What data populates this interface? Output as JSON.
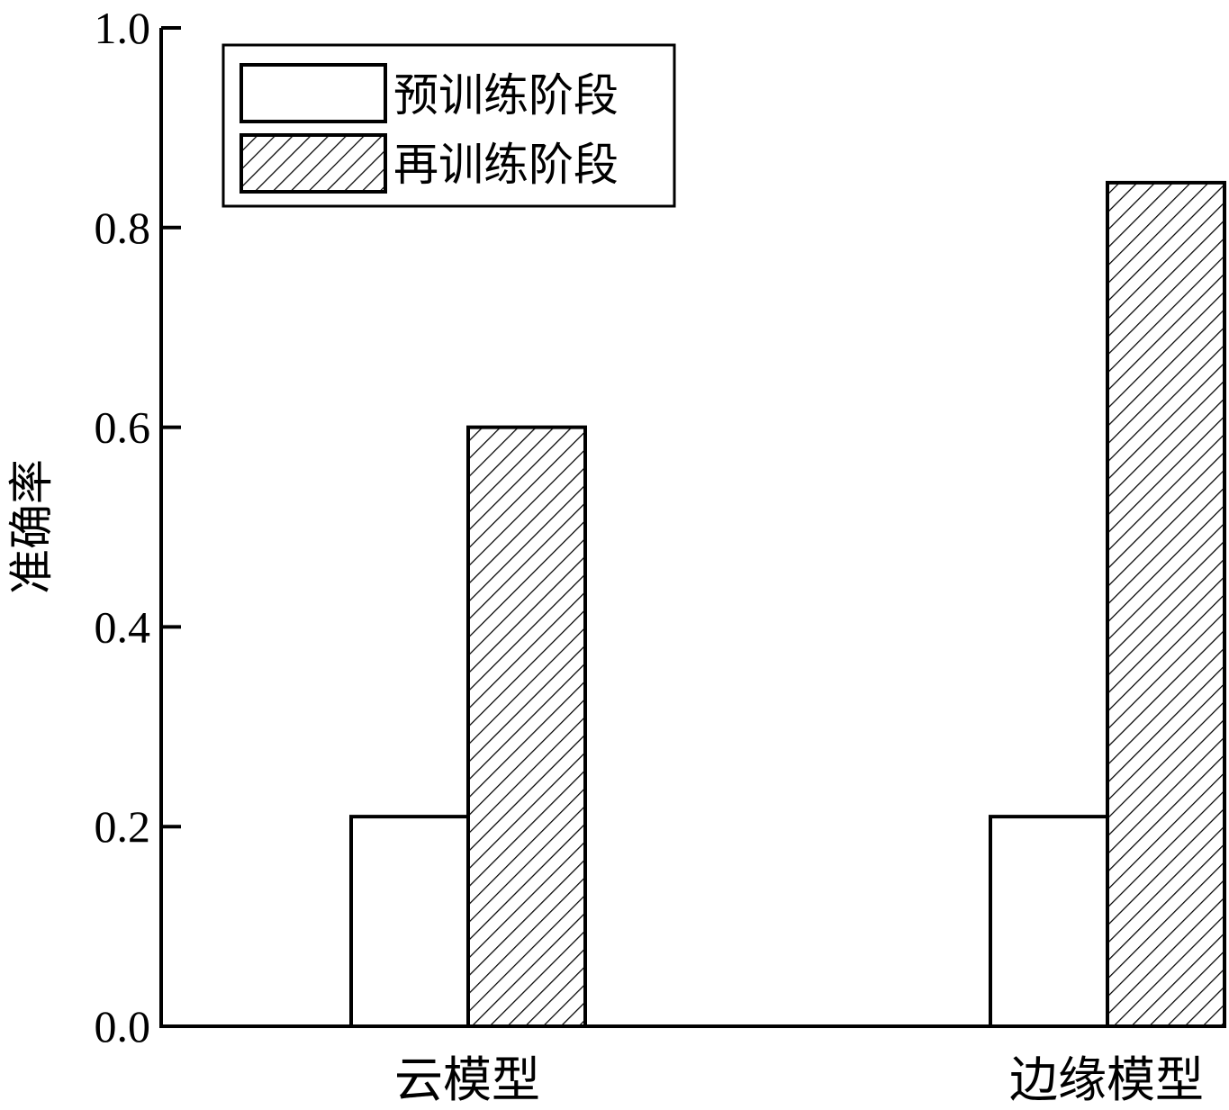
{
  "chart_data": {
    "type": "bar",
    "categories": [
      "云模型",
      "边缘模型"
    ],
    "series": [
      {
        "name": "预训练阶段",
        "values": [
          0.21,
          0.21
        ],
        "pattern": "none"
      },
      {
        "name": "再训练阶段",
        "values": [
          0.6,
          0.845
        ],
        "pattern": "hatch"
      }
    ],
    "ylabel": "准确率",
    "xlabel": "",
    "ylim": [
      0,
      1.0
    ],
    "yticks": [
      "0.0",
      "0.2",
      "0.4",
      "0.6",
      "0.8",
      "1.0"
    ],
    "grid": false,
    "legend_position": "top-left",
    "colors": {
      "stroke": "#000000",
      "fill": "#ffffff"
    }
  }
}
